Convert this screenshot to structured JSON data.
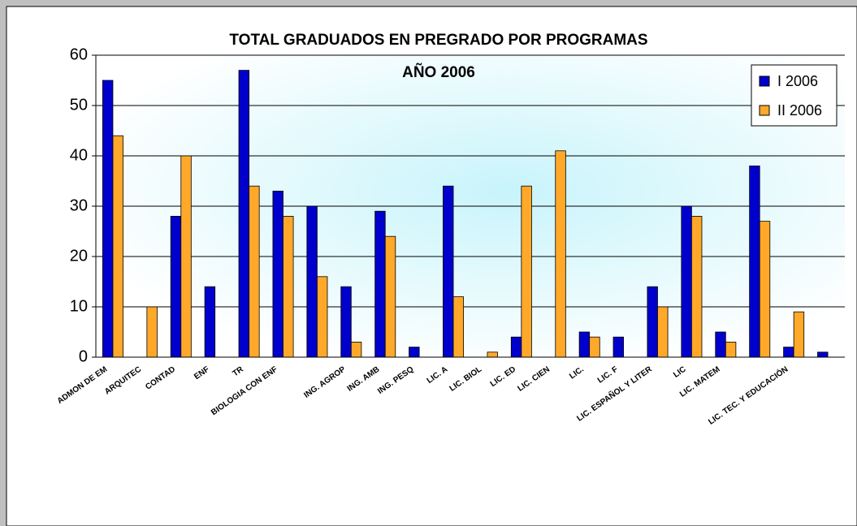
{
  "chart_data": {
    "type": "bar",
    "title": "TOTAL GRADUADOS EN PREGRADO  POR PROGRAMAS",
    "subtitle": "AÑO 2006",
    "categories": [
      "ADMON DE EM",
      "ARQUITEC",
      "CONTAD",
      "ENF",
      "TR",
      "BIOLOGIA CON ENF",
      null,
      "ING. AGROP",
      "ING. AMB",
      "ING. PESQ",
      "LIC. A",
      "LIC. BIOL",
      "LIC. ED",
      "LIC. CIEN",
      "LIC. ",
      "LIC. F",
      "LIC. ESPAÑOL Y LITER",
      "LIC",
      "LIC. MATEM",
      null,
      "LIC. TEC. Y EDUCACIÓN",
      null
    ],
    "series": [
      {
        "name": "I 2006",
        "color": "#0000cc",
        "values": [
          55,
          0,
          28,
          14,
          57,
          33,
          30,
          14,
          29,
          2,
          34,
          0,
          4,
          0,
          5,
          4,
          14,
          30,
          5,
          38,
          2,
          1
        ]
      },
      {
        "name": "II 2006",
        "color": "#ffa829",
        "values": [
          44,
          10,
          40,
          0,
          34,
          28,
          16,
          3,
          24,
          0,
          12,
          1,
          34,
          41,
          4,
          0,
          10,
          28,
          3,
          27,
          9,
          0
        ]
      }
    ],
    "ylim": [
      0,
      60
    ],
    "yticks": [
      0,
      10,
      20,
      30,
      40,
      50,
      60
    ],
    "grid": true,
    "legend": "top-right"
  }
}
